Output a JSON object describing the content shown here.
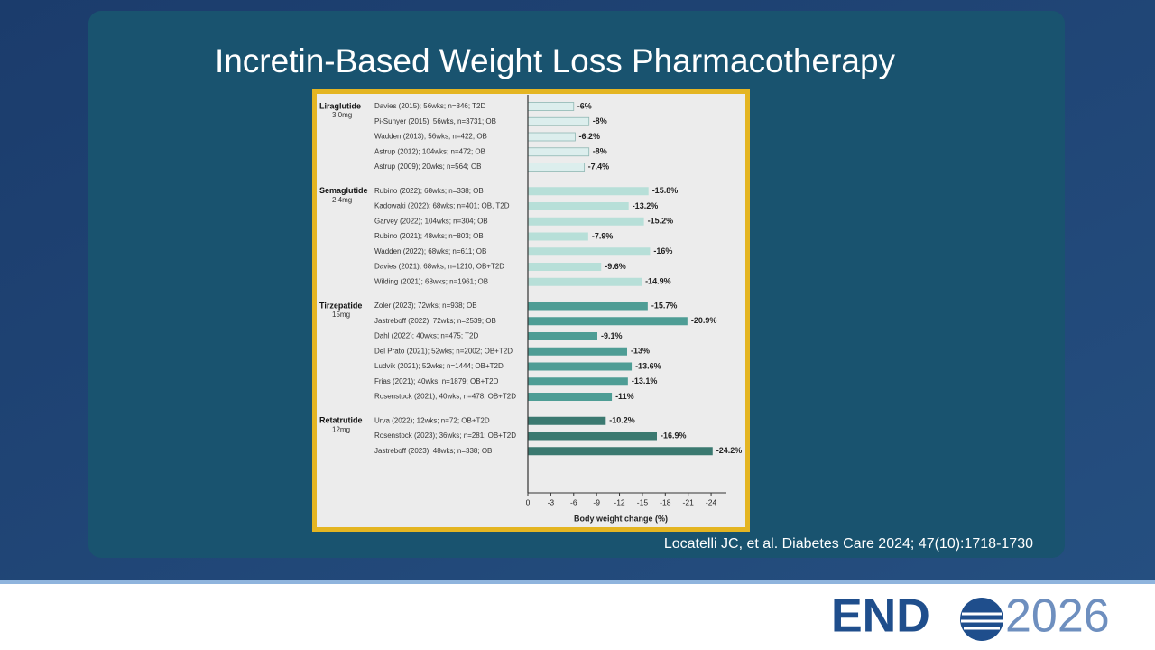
{
  "slide": {
    "title": "Incretin-Based Weight Loss Pharmacotherapy",
    "citation": "Locatelli JC, et al. Diabetes Care 2024; 47(10):1718-1730",
    "logo": {
      "left": "END",
      "right": "2026"
    }
  },
  "chart_data": {
    "type": "bar",
    "orientation": "horizontal",
    "x_label": "Body weight change (%)",
    "xlim": [
      0,
      -26
    ],
    "xticks": [
      0,
      -3,
      -6,
      -9,
      -12,
      -15,
      -18,
      -21,
      -24
    ],
    "groups": [
      {
        "name": "Liraglutide",
        "dose": "3.0mg",
        "color": "#dceeed",
        "categories": [
          "Davies (2015); 56wks; n=846; T2D",
          "Pi-Sunyer (2015); 56wks, n=3731; OB",
          "Wadden (2013); 56wks; n=422; OB",
          "Astrup (2012); 104wks; n=472; OB",
          "Astrup (2009); 20wks; n=564; OB"
        ],
        "values": [
          -6,
          -8,
          -6.2,
          -8,
          -7.4
        ],
        "value_labels": [
          "-6%",
          "-8%",
          "-6.2%",
          "-8%",
          "-7.4%"
        ]
      },
      {
        "name": "Semaglutide",
        "dose": "2.4mg",
        "color": "#b7dfd8",
        "categories": [
          "Rubino (2022); 68wks; n=338; OB",
          "Kadowaki (2022); 68wks; n=401; OB, T2D",
          "Garvey (2022); 104wks; n=304; OB",
          "Rubino (2021); 48wks; n=803; OB",
          "Wadden (2022); 68wks; n=611; OB",
          "Davies (2021); 68wks; n=1210; OB+T2D",
          "Wilding (2021); 68wks; n=1961; OB"
        ],
        "values": [
          -15.8,
          -13.2,
          -15.2,
          -7.9,
          -16,
          -9.6,
          -14.9
        ],
        "value_labels": [
          "-15.8%",
          "-13.2%",
          "-15.2%",
          "-7.9%",
          "-16%",
          "-9.6%",
          "-14.9%"
        ]
      },
      {
        "name": "Tirzepatide",
        "dose": "15mg",
        "color": "#4e9d95",
        "categories": [
          "Zoler (2023); 72wks; n=938; OB",
          "Jastreboff (2022); 72wks; n=2539; OB",
          "Dahl (2022); 40wks; n=475; T2D",
          "Del Prato (2021); 52wks; n=2002; OB+T2D",
          "Ludvik (2021); 52wks; n=1444; OB+T2D",
          "Frias (2021); 40wks; n=1879; OB+T2D",
          "Rosenstock (2021); 40wks; n=478; OB+T2D"
        ],
        "values": [
          -15.7,
          -20.9,
          -9.1,
          -13,
          -13.6,
          -13.1,
          -11
        ],
        "value_labels": [
          "-15.7%",
          "-20.9%",
          "-9.1%",
          "-13%",
          "-13.6%",
          "-13.1%",
          "-11%"
        ]
      },
      {
        "name": "Retatrutide",
        "dose": "12mg",
        "color": "#3b7970",
        "categories": [
          "Urva (2022); 12wks; n=72; OB+T2D",
          "Rosenstock (2023); 36wks; n=281; OB+T2D",
          "Jastreboff (2023); 48wks; n=338; OB"
        ],
        "values": [
          -10.2,
          -16.9,
          -24.2
        ],
        "value_labels": [
          "-10.2%",
          "-16.9%",
          "-24.2%"
        ]
      }
    ]
  }
}
